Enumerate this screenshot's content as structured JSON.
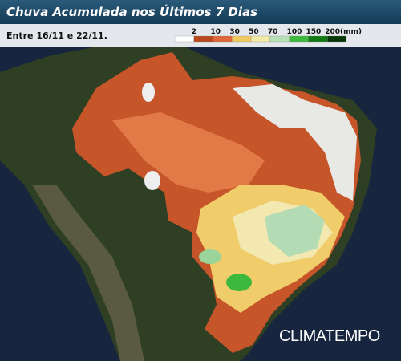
{
  "header": {
    "title": "Chuva Acumulada nos Últimos 7 Dias",
    "subtitle": "Entre 16/11 e 22/11."
  },
  "legend": {
    "labels": [
      "2",
      "10",
      "30",
      "50",
      "70",
      "100",
      "150",
      "200(mm)"
    ],
    "colors": [
      "#ffffff",
      "#b8481e",
      "#e0683a",
      "#f0c860",
      "#f4eaa8",
      "#b8e0b8",
      "#3cba3c",
      "#127a12",
      "#063806"
    ]
  },
  "logo": "CLIMATEMPO"
}
